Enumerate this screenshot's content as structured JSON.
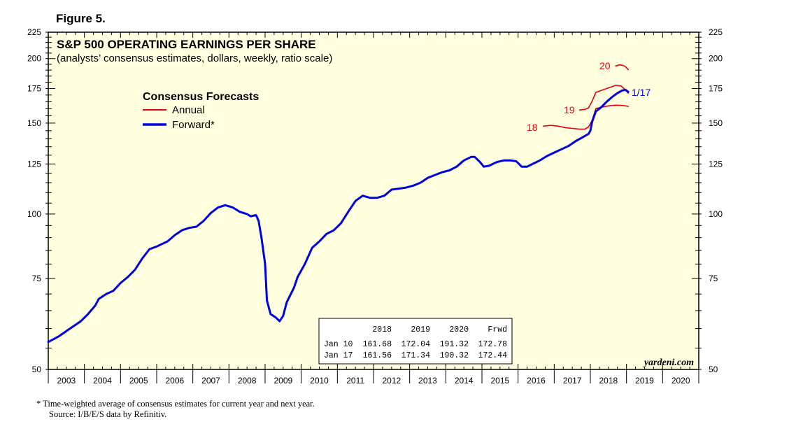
{
  "figure_label": "Figure 5.",
  "chart_data": {
    "type": "line",
    "title": "S&P 500 OPERATING EARNINGS PER SHARE",
    "subtitle": "(analysts’ consensus estimates, dollars, weekly, ratio scale)",
    "y_scale": "log",
    "ylim": [
      50,
      225
    ],
    "y_ticks": [
      50,
      75,
      100,
      125,
      150,
      175,
      200,
      225
    ],
    "xlim": [
      2003,
      2021
    ],
    "x_tick_labels": [
      "2003",
      "2004",
      "2005",
      "2006",
      "2007",
      "2008",
      "2009",
      "2010",
      "2011",
      "2012",
      "2013",
      "2014",
      "2015",
      "2016",
      "2017",
      "2018",
      "2019",
      "2020"
    ],
    "grid": false,
    "legend": {
      "title": "Consensus Forecasts",
      "placement": "top-left",
      "entries": [
        {
          "label": "Annual",
          "color": "#e8000b"
        },
        {
          "label": "Forward*",
          "color": "#0000e6"
        }
      ]
    },
    "series": [
      {
        "name": "Forward*",
        "color": "#0000e6",
        "points": [
          [
            2003.0,
            56.5
          ],
          [
            2003.3,
            58.0
          ],
          [
            2003.6,
            60.0
          ],
          [
            2003.9,
            62.0
          ],
          [
            2004.1,
            64.0
          ],
          [
            2004.3,
            66.5
          ],
          [
            2004.4,
            68.5
          ],
          [
            2004.6,
            70.0
          ],
          [
            2004.8,
            71.0
          ],
          [
            2005.0,
            73.5
          ],
          [
            2005.2,
            75.5
          ],
          [
            2005.4,
            78.0
          ],
          [
            2005.6,
            82.0
          ],
          [
            2005.8,
            85.5
          ],
          [
            2006.0,
            86.5
          ],
          [
            2006.3,
            88.5
          ],
          [
            2006.5,
            91.0
          ],
          [
            2006.7,
            93.0
          ],
          [
            2006.9,
            94.0
          ],
          [
            2007.1,
            94.5
          ],
          [
            2007.3,
            97.0
          ],
          [
            2007.5,
            100.5
          ],
          [
            2007.7,
            103.0
          ],
          [
            2007.9,
            104.0
          ],
          [
            2008.1,
            103.0
          ],
          [
            2008.3,
            101.0
          ],
          [
            2008.5,
            100.0
          ],
          [
            2008.6,
            99.0
          ],
          [
            2008.75,
            99.5
          ],
          [
            2008.82,
            97.0
          ],
          [
            2008.9,
            90.0
          ],
          [
            2009.0,
            80.0
          ],
          [
            2009.05,
            68.0
          ],
          [
            2009.15,
            64.0
          ],
          [
            2009.3,
            63.0
          ],
          [
            2009.4,
            62.0
          ],
          [
            2009.5,
            63.5
          ],
          [
            2009.6,
            67.5
          ],
          [
            2009.8,
            72.0
          ],
          [
            2009.9,
            75.5
          ],
          [
            2010.1,
            80.0
          ],
          [
            2010.3,
            86.0
          ],
          [
            2010.5,
            88.5
          ],
          [
            2010.7,
            91.5
          ],
          [
            2010.9,
            93.0
          ],
          [
            2011.1,
            96.0
          ],
          [
            2011.3,
            101.0
          ],
          [
            2011.5,
            106.0
          ],
          [
            2011.7,
            108.5
          ],
          [
            2011.9,
            107.5
          ],
          [
            2012.1,
            107.5
          ],
          [
            2012.3,
            108.5
          ],
          [
            2012.5,
            111.5
          ],
          [
            2012.7,
            112.0
          ],
          [
            2012.9,
            112.5
          ],
          [
            2013.1,
            113.5
          ],
          [
            2013.3,
            115.0
          ],
          [
            2013.5,
            117.5
          ],
          [
            2013.7,
            119.0
          ],
          [
            2013.9,
            120.5
          ],
          [
            2014.1,
            121.5
          ],
          [
            2014.3,
            123.5
          ],
          [
            2014.5,
            127.0
          ],
          [
            2014.7,
            129.0
          ],
          [
            2014.8,
            129.0
          ],
          [
            2014.95,
            126.0
          ],
          [
            2015.05,
            123.5
          ],
          [
            2015.2,
            124.0
          ],
          [
            2015.4,
            126.0
          ],
          [
            2015.6,
            127.0
          ],
          [
            2015.8,
            127.0
          ],
          [
            2015.95,
            126.5
          ],
          [
            2016.1,
            123.5
          ],
          [
            2016.25,
            123.5
          ],
          [
            2016.4,
            125.0
          ],
          [
            2016.6,
            127.0
          ],
          [
            2016.8,
            129.5
          ],
          [
            2017.0,
            131.5
          ],
          [
            2017.2,
            133.5
          ],
          [
            2017.4,
            135.5
          ],
          [
            2017.6,
            138.5
          ],
          [
            2017.8,
            141.0
          ],
          [
            2017.95,
            143.0
          ],
          [
            2018.0,
            145.0
          ],
          [
            2018.05,
            151.0
          ],
          [
            2018.15,
            158.0
          ],
          [
            2018.3,
            161.0
          ],
          [
            2018.45,
            165.0
          ],
          [
            2018.6,
            168.5
          ],
          [
            2018.75,
            171.5
          ],
          [
            2018.88,
            173.5
          ],
          [
            2018.97,
            174.0
          ],
          [
            2019.05,
            172.44
          ]
        ]
      },
      {
        "name": "2018",
        "color": "#e8000b",
        "points": [
          [
            2016.7,
            148.0
          ],
          [
            2016.9,
            148.5
          ],
          [
            2017.1,
            148.0
          ],
          [
            2017.3,
            147.0
          ],
          [
            2017.5,
            146.5
          ],
          [
            2017.7,
            146.0
          ],
          [
            2017.85,
            146.0
          ],
          [
            2017.95,
            147.5
          ],
          [
            2018.05,
            152.0
          ],
          [
            2018.15,
            160.0
          ],
          [
            2018.3,
            161.0
          ],
          [
            2018.5,
            162.0
          ],
          [
            2018.7,
            162.5
          ],
          [
            2018.9,
            162.3
          ],
          [
            2019.05,
            161.56
          ]
        ]
      },
      {
        "name": "2019",
        "color": "#e8000b",
        "points": [
          [
            2017.7,
            159.0
          ],
          [
            2017.85,
            159.5
          ],
          [
            2017.95,
            160.5
          ],
          [
            2018.05,
            165.5
          ],
          [
            2018.15,
            172.0
          ],
          [
            2018.3,
            173.5
          ],
          [
            2018.5,
            175.5
          ],
          [
            2018.7,
            177.5
          ],
          [
            2018.85,
            177.0
          ],
          [
            2018.97,
            174.0
          ],
          [
            2019.05,
            171.34
          ]
        ]
      },
      {
        "name": "2020",
        "color": "#e8000b",
        "points": [
          [
            2018.7,
            193.5
          ],
          [
            2018.8,
            194.5
          ],
          [
            2018.9,
            194.0
          ],
          [
            2018.97,
            193.0
          ],
          [
            2019.05,
            190.32
          ]
        ]
      }
    ],
    "annotations": [
      {
        "text": "20",
        "color": "#e8000b"
      },
      {
        "text": "19",
        "color": "#e8000b"
      },
      {
        "text": "18",
        "color": "#e8000b"
      },
      {
        "text": "1/17",
        "color": "#0000e6"
      }
    ],
    "table": {
      "headers": [
        "",
        "2018",
        "2019",
        "2020",
        "Frwd"
      ],
      "rows": [
        [
          "Jan 10",
          "161.68",
          "172.04",
          "191.32",
          "172.78"
        ],
        [
          "Jan 17",
          "161.56",
          "171.34",
          "190.32",
          "172.44"
        ]
      ]
    }
  },
  "brand": "yardeni.com",
  "footnote": "*   Time-weighted average of consensus estimates for current year and next year.",
  "source": "Source: I/B/E/S data by Refinitiv.",
  "colors": {
    "plot_bg": "#ffffe0",
    "forward": "#0000e6",
    "annual": "#e8000b"
  }
}
